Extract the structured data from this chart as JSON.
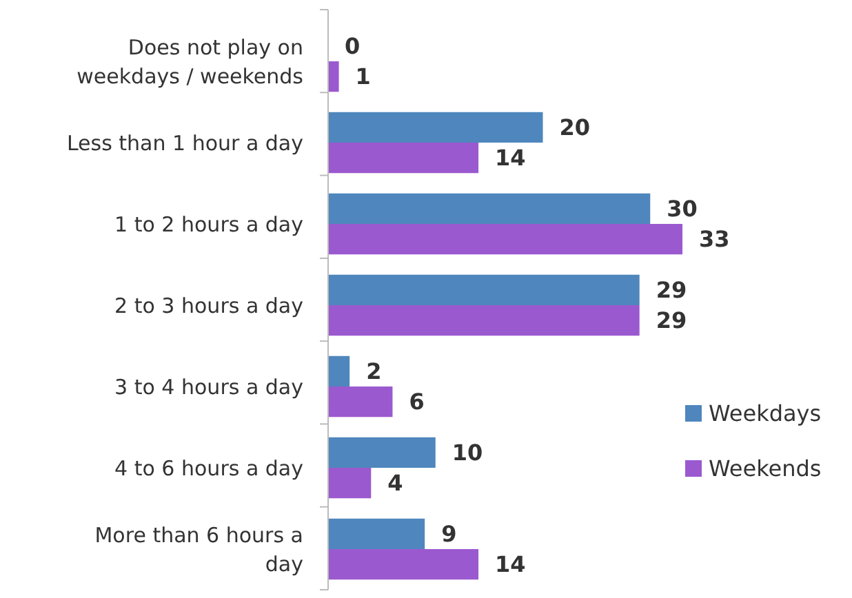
{
  "chart_data": {
    "type": "bar",
    "orientation": "horizontal",
    "categories": [
      "Does not play on weekdays / weekends",
      "Less than 1 hour a day",
      "1 to 2 hours a day",
      "2 to 3 hours a day",
      "3 to 4 hours a day",
      "4 to 6 hours a day",
      "More than 6 hours a day"
    ],
    "series": [
      {
        "name": "Weekdays",
        "color": "#4f86bd",
        "values": [
          0,
          20,
          30,
          29,
          2,
          10,
          9
        ]
      },
      {
        "name": "Weekends",
        "color": "#9b59d0",
        "values": [
          1,
          14,
          33,
          29,
          6,
          4,
          14
        ]
      }
    ],
    "data_labels": true,
    "legend": "right",
    "grid": false
  }
}
